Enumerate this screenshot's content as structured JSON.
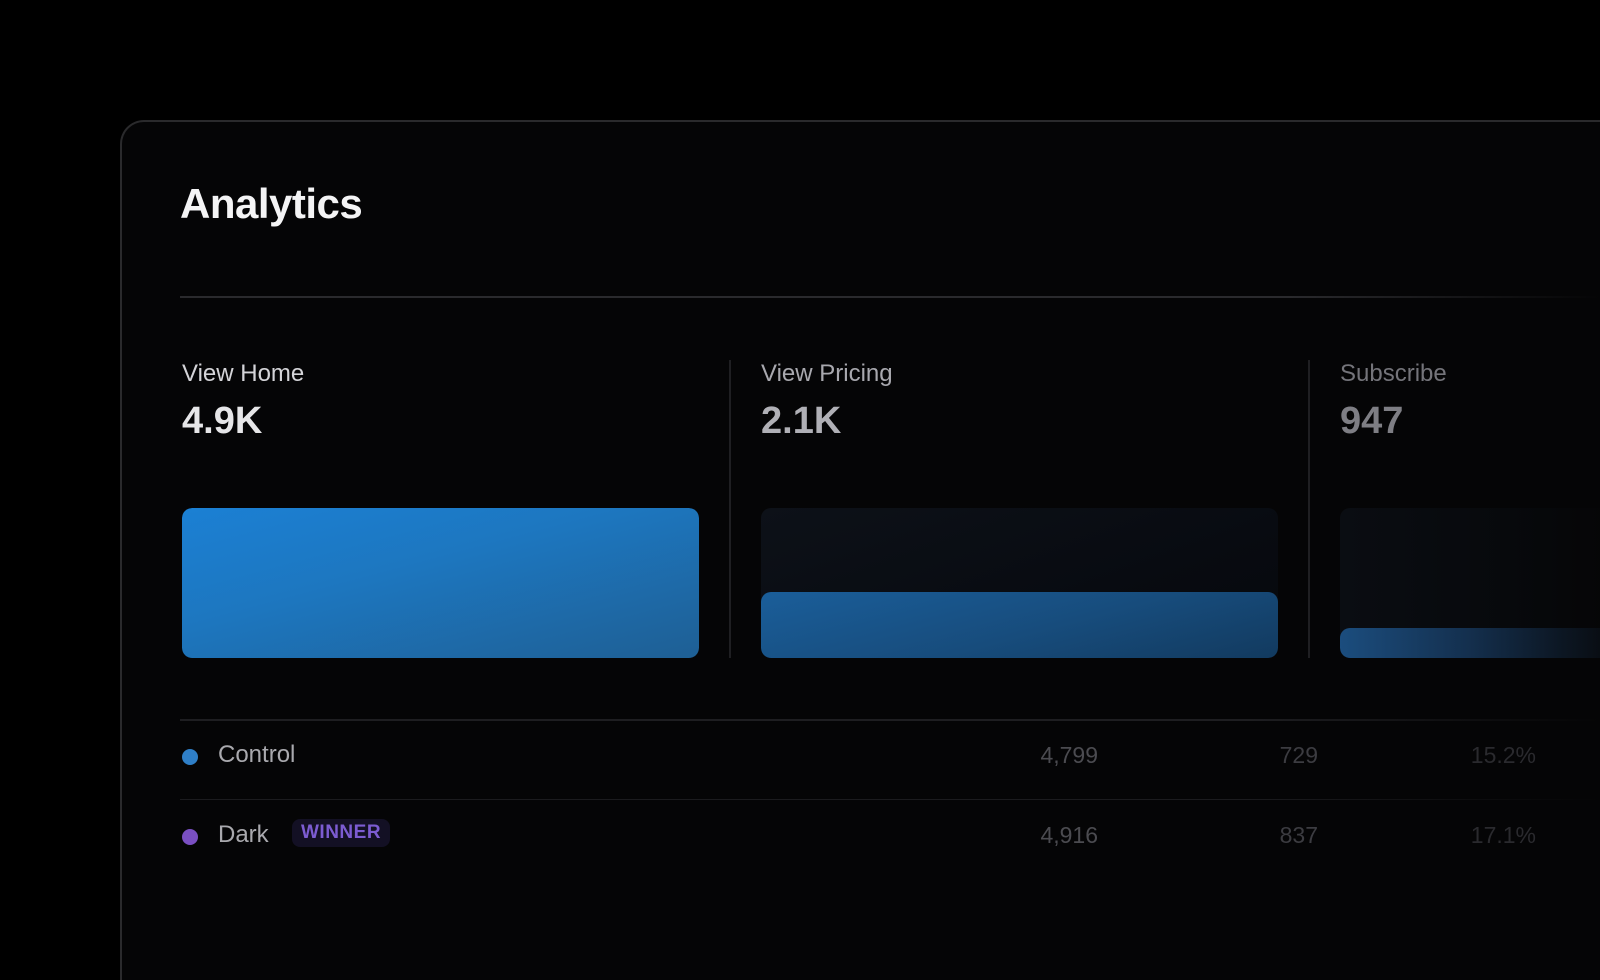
{
  "page": {
    "title": "Analytics"
  },
  "metrics": [
    {
      "label": "View Home",
      "value": "4.9K",
      "fill_fraction": 1.0
    },
    {
      "label": "View Pricing",
      "value": "2.1K",
      "fill_fraction": 0.44
    },
    {
      "label": "Subscribe",
      "value": "947",
      "fill_fraction": 0.2
    }
  ],
  "table": {
    "rows": [
      {
        "name": "Control",
        "badge": "",
        "dot_color": "#2f7fc7",
        "values": [
          "4,799",
          "729",
          "15.2%"
        ]
      },
      {
        "name": "Dark",
        "badge": "WINNER",
        "dot_color": "#7a4fc2",
        "values": [
          "4,916",
          "837",
          "17.1%"
        ]
      }
    ]
  },
  "colors": {
    "accent_blue": "#1b80d4",
    "winner_purple": "#7c5cd1",
    "background": "#000000"
  }
}
